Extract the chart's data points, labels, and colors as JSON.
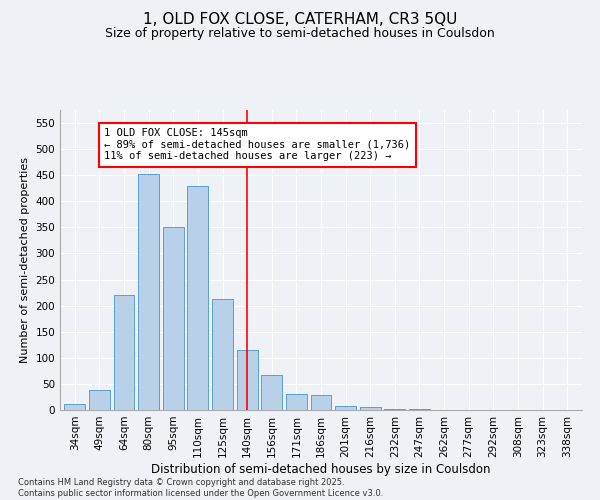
{
  "title1": "1, OLD FOX CLOSE, CATERHAM, CR3 5QU",
  "title2": "Size of property relative to semi-detached houses in Coulsdon",
  "xlabel": "Distribution of semi-detached houses by size in Coulsdon",
  "ylabel": "Number of semi-detached properties",
  "categories": [
    "34sqm",
    "49sqm",
    "64sqm",
    "80sqm",
    "95sqm",
    "110sqm",
    "125sqm",
    "140sqm",
    "156sqm",
    "171sqm",
    "186sqm",
    "201sqm",
    "216sqm",
    "232sqm",
    "247sqm",
    "262sqm",
    "277sqm",
    "292sqm",
    "308sqm",
    "323sqm",
    "338sqm"
  ],
  "values": [
    12,
    39,
    220,
    453,
    351,
    430,
    213,
    115,
    68,
    31,
    29,
    7,
    6,
    1,
    1,
    0,
    0,
    0,
    0,
    0,
    0
  ],
  "bar_color": "#b8d0e8",
  "bar_edge_color": "#5a9fd4",
  "vline_x": 7,
  "vline_color": "red",
  "annotation_text": "1 OLD FOX CLOSE: 145sqm\n← 89% of semi-detached houses are smaller (1,736)\n11% of semi-detached houses are larger (223) →",
  "annotation_box_color": "white",
  "annotation_box_edge_color": "red",
  "ylim": [
    0,
    575
  ],
  "yticks": [
    0,
    50,
    100,
    150,
    200,
    250,
    300,
    350,
    400,
    450,
    500,
    550
  ],
  "bg_color": "#eef2f7",
  "footer_text": "Contains HM Land Registry data © Crown copyright and database right 2025.\nContains public sector information licensed under the Open Government Licence v3.0.",
  "title1_fontsize": 11,
  "title2_fontsize": 9,
  "xlabel_fontsize": 8.5,
  "ylabel_fontsize": 8,
  "tick_fontsize": 7.5,
  "annotation_fontsize": 7.5,
  "footer_fontsize": 6
}
